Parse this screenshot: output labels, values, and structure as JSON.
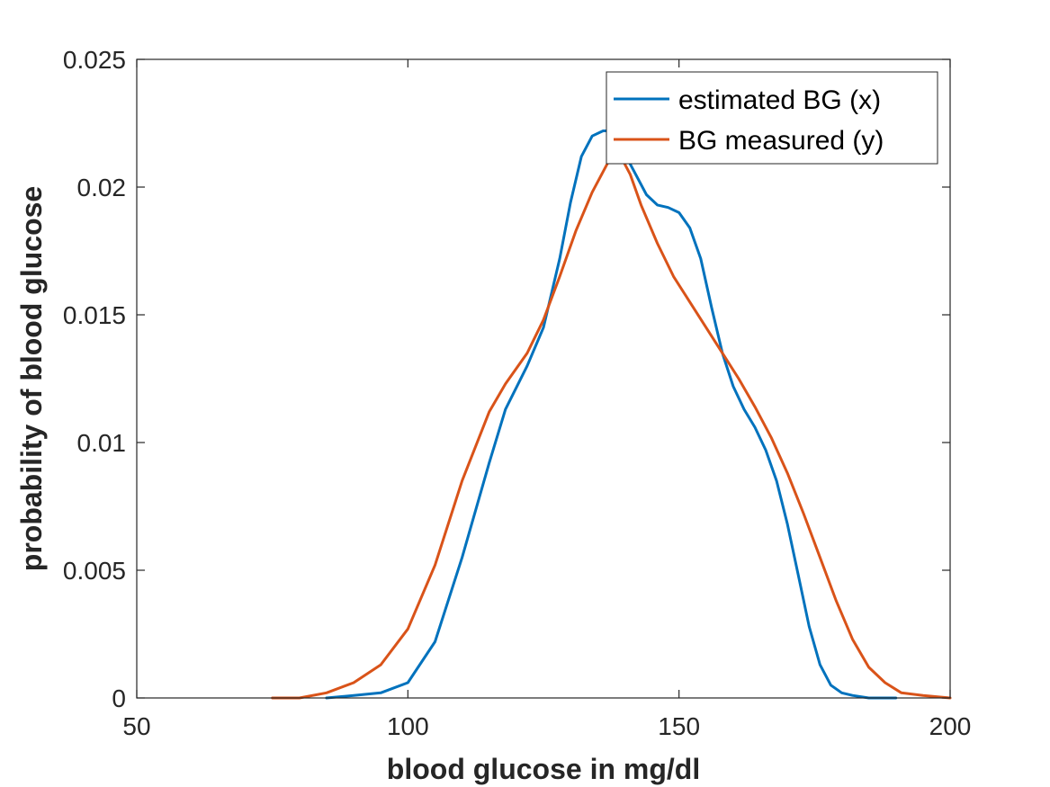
{
  "chart_data": {
    "type": "line",
    "title": "",
    "xlabel": "blood glucose in mg/dl",
    "ylabel": "probability of blood glucose",
    "xlim": [
      50,
      200
    ],
    "ylim": [
      0,
      0.025
    ],
    "x_ticks": [
      50,
      100,
      150,
      200
    ],
    "x_tick_labels": [
      "50",
      "100",
      "150",
      "200"
    ],
    "y_ticks": [
      0,
      0.005,
      0.01,
      0.015,
      0.02,
      0.025
    ],
    "y_tick_labels": [
      "0",
      "0.005",
      "0.01",
      "0.015",
      "0.02",
      "0.025"
    ],
    "grid": false,
    "box": true,
    "legend_position": "top-right",
    "series": [
      {
        "name": "estimated BG (x)",
        "color": "#0072BD",
        "x": [
          85,
          90,
          95,
          100,
          105,
          110,
          115,
          118,
          122,
          125,
          128,
          130,
          132,
          134,
          136,
          137,
          138,
          140,
          142,
          144,
          146,
          148,
          150,
          152,
          154,
          156,
          158,
          160,
          162,
          164,
          166,
          168,
          170,
          172,
          174,
          176,
          178,
          180,
          182,
          185,
          188,
          190
        ],
        "y": [
          0.0,
          0.0001,
          0.0002,
          0.0006,
          0.0022,
          0.0055,
          0.0092,
          0.0113,
          0.013,
          0.0145,
          0.0172,
          0.0194,
          0.0212,
          0.022,
          0.0222,
          0.0222,
          0.022,
          0.0213,
          0.0205,
          0.0197,
          0.0193,
          0.0192,
          0.019,
          0.0184,
          0.0172,
          0.0153,
          0.0135,
          0.0122,
          0.0113,
          0.0106,
          0.0097,
          0.0085,
          0.0068,
          0.0048,
          0.0028,
          0.0013,
          0.0005,
          0.0002,
          0.0001,
          0.0,
          0.0,
          0.0
        ]
      },
      {
        "name": "BG measured (y)",
        "color": "#D95319",
        "x": [
          75,
          80,
          85,
          90,
          95,
          100,
          105,
          110,
          115,
          118,
          122,
          125,
          128,
          131,
          134,
          137,
          139,
          141,
          143,
          146,
          149,
          152,
          155,
          158,
          161,
          164,
          167,
          170,
          173,
          176,
          179,
          182,
          185,
          188,
          191,
          195,
          200
        ],
        "y": [
          0.0,
          0.0,
          0.0002,
          0.0006,
          0.0013,
          0.0027,
          0.0052,
          0.0085,
          0.0112,
          0.0123,
          0.0135,
          0.0148,
          0.0165,
          0.0183,
          0.0198,
          0.021,
          0.0213,
          0.0205,
          0.0193,
          0.0178,
          0.0165,
          0.0155,
          0.0145,
          0.0135,
          0.0125,
          0.0114,
          0.0102,
          0.0088,
          0.0072,
          0.0055,
          0.0038,
          0.0023,
          0.0012,
          0.0006,
          0.0002,
          0.0001,
          0.0
        ]
      }
    ]
  }
}
